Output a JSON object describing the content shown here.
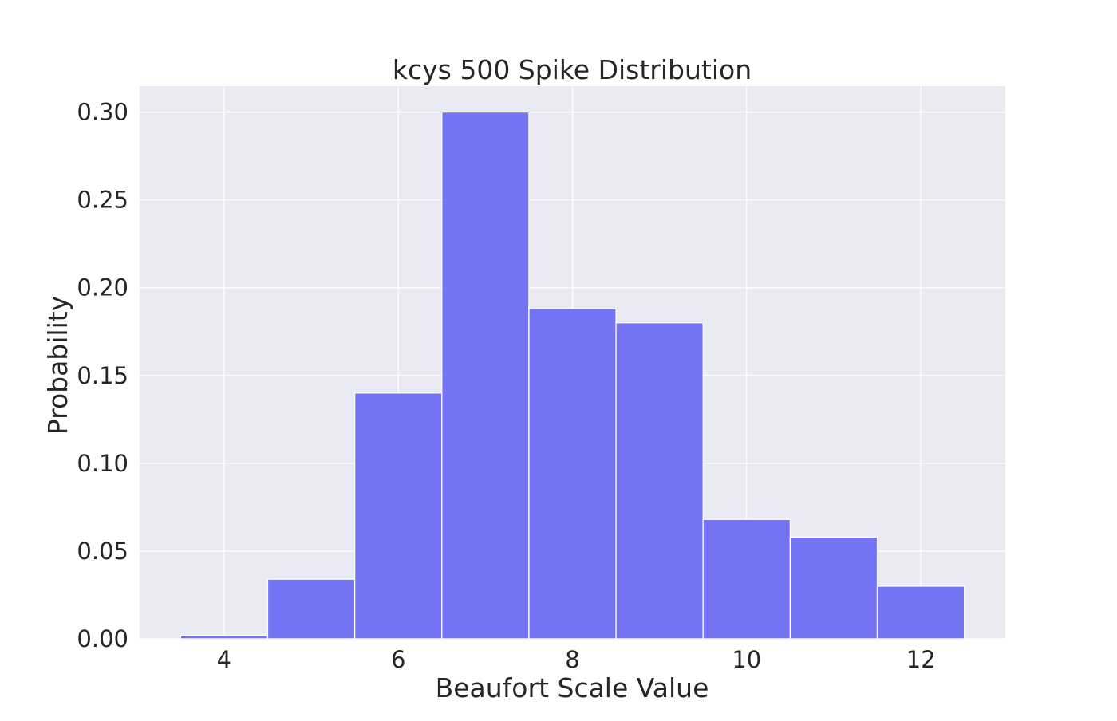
{
  "chart_data": {
    "type": "bar",
    "title": "kcys 500 Spike Distribution",
    "xlabel": "Beaufort Scale Value",
    "ylabel": "Probability",
    "xlim": [
      3.03,
      12.97
    ],
    "ylim": [
      0,
      0.3148
    ],
    "xticks": [
      4,
      6,
      8,
      10,
      12
    ],
    "yticks": [
      0.0,
      0.05,
      0.1,
      0.15,
      0.2,
      0.25,
      0.3
    ],
    "xtick_labels": [
      "4",
      "6",
      "8",
      "10",
      "12"
    ],
    "ytick_labels": [
      "0.00",
      "0.05",
      "0.10",
      "0.15",
      "0.20",
      "0.25",
      "0.30"
    ],
    "bins": [
      {
        "x0": 3.5,
        "x1": 4.5,
        "value": 0.002
      },
      {
        "x0": 4.5,
        "x1": 5.5,
        "value": 0.034
      },
      {
        "x0": 5.5,
        "x1": 6.5,
        "value": 0.14
      },
      {
        "x0": 6.5,
        "x1": 7.5,
        "value": 0.3
      },
      {
        "x0": 7.5,
        "x1": 8.5,
        "value": 0.188
      },
      {
        "x0": 8.5,
        "x1": 9.5,
        "value": 0.18
      },
      {
        "x0": 9.5,
        "x1": 10.5,
        "value": 0.068
      },
      {
        "x0": 10.5,
        "x1": 11.5,
        "value": 0.058
      },
      {
        "x0": 11.5,
        "x1": 12.5,
        "value": 0.03
      }
    ],
    "grid": true,
    "legend": false,
    "colors": {
      "bar": "#6666f4",
      "bar_edge": "#ffffff",
      "axes_background": "#eaeaf2",
      "grid": "#ffffff",
      "text": "#262626"
    }
  }
}
